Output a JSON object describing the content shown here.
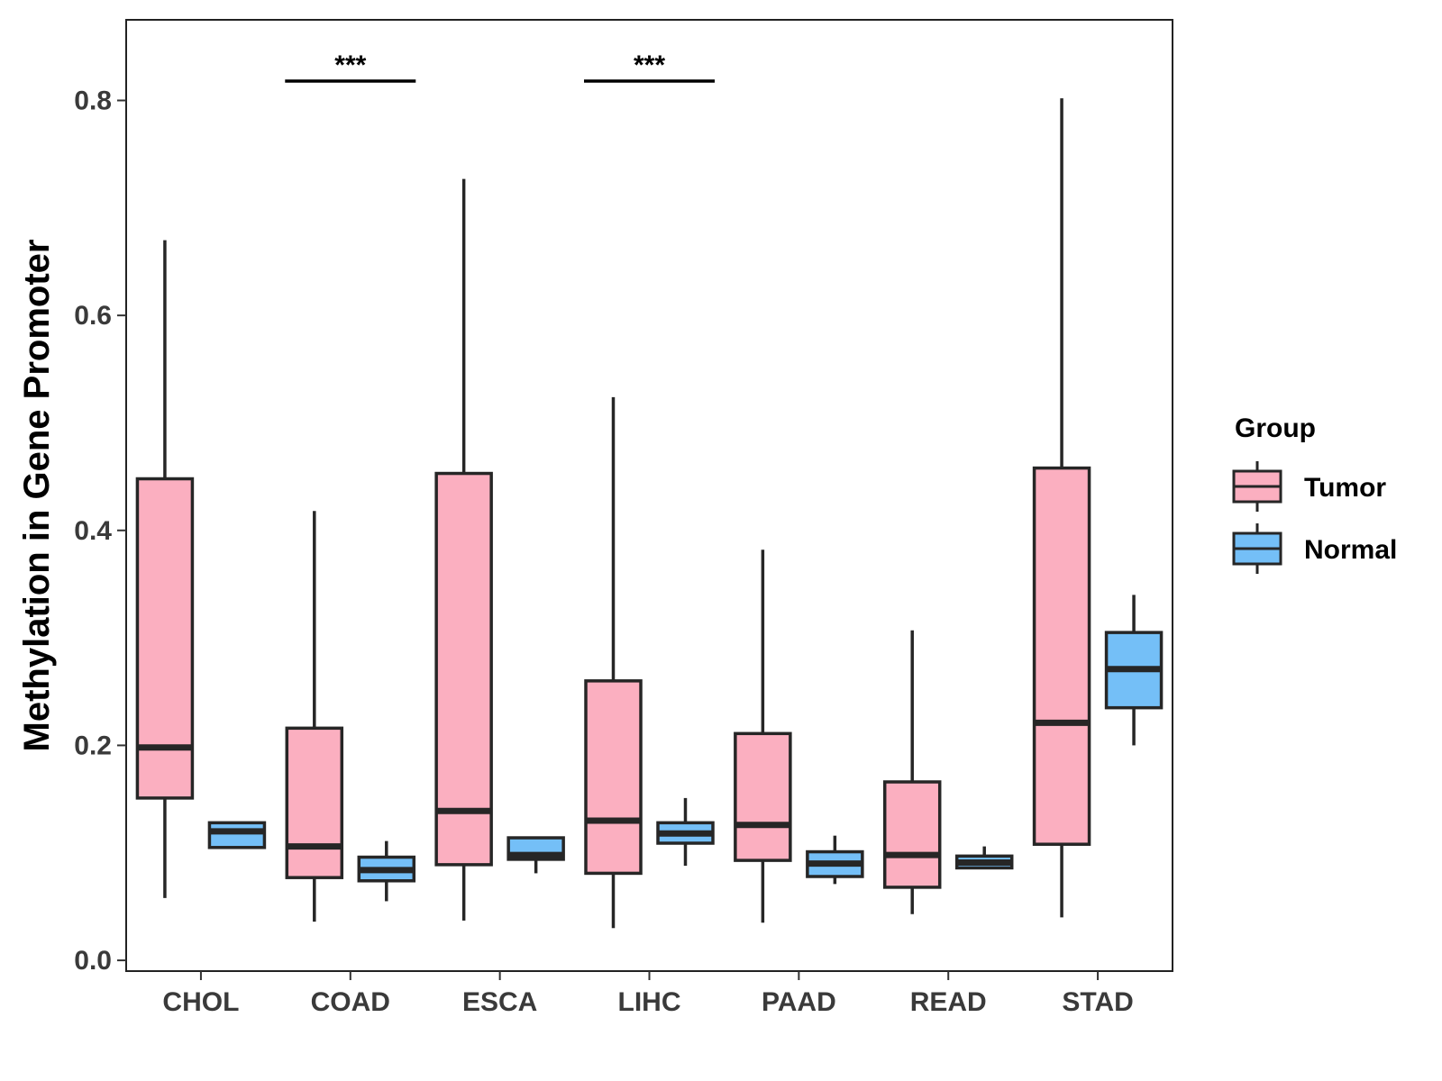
{
  "chart_data": {
    "type": "boxplot",
    "title": "",
    "xlabel": "",
    "ylabel": "Methylation in Gene Promoter",
    "ylim": [
      -0.01,
      0.875
    ],
    "yticks": [
      0.0,
      0.2,
      0.4,
      0.6,
      0.8
    ],
    "ytick_labels": [
      "0.0",
      "0.2",
      "0.4",
      "0.6",
      "0.8"
    ],
    "categories": [
      "CHOL",
      "COAD",
      "ESCA",
      "LIHC",
      "PAAD",
      "READ",
      "STAD"
    ],
    "legend": {
      "title": "Group",
      "position": "right",
      "entries": [
        {
          "name": "Tumor",
          "color": "#fbafc0"
        },
        {
          "name": "Normal",
          "color": "#74bff7"
        }
      ]
    },
    "series": [
      {
        "name": "Tumor",
        "color": "#fbafc0",
        "boxes": [
          {
            "category": "CHOL",
            "min": 0.058,
            "q1": 0.151,
            "median": 0.198,
            "q3": 0.448,
            "max": 0.67
          },
          {
            "category": "COAD",
            "min": 0.036,
            "q1": 0.077,
            "median": 0.106,
            "q3": 0.216,
            "max": 0.418
          },
          {
            "category": "ESCA",
            "min": 0.037,
            "q1": 0.089,
            "median": 0.139,
            "q3": 0.453,
            "max": 0.727
          },
          {
            "category": "LIHC",
            "min": 0.03,
            "q1": 0.081,
            "median": 0.13,
            "q3": 0.26,
            "max": 0.524
          },
          {
            "category": "PAAD",
            "min": 0.035,
            "q1": 0.093,
            "median": 0.126,
            "q3": 0.211,
            "max": 0.382
          },
          {
            "category": "READ",
            "min": 0.043,
            "q1": 0.068,
            "median": 0.098,
            "q3": 0.166,
            "max": 0.307
          },
          {
            "category": "STAD",
            "min": 0.04,
            "q1": 0.108,
            "median": 0.221,
            "q3": 0.458,
            "max": 0.802
          }
        ]
      },
      {
        "name": "Normal",
        "color": "#74bff7",
        "boxes": [
          {
            "category": "CHOL",
            "min": 0.104,
            "q1": 0.105,
            "median": 0.12,
            "q3": 0.128,
            "max": 0.129
          },
          {
            "category": "COAD",
            "min": 0.055,
            "q1": 0.074,
            "median": 0.084,
            "q3": 0.096,
            "max": 0.111
          },
          {
            "category": "ESCA",
            "min": 0.081,
            "q1": 0.094,
            "median": 0.098,
            "q3": 0.114,
            "max": 0.115
          },
          {
            "category": "LIHC",
            "min": 0.088,
            "q1": 0.109,
            "median": 0.118,
            "q3": 0.128,
            "max": 0.151
          },
          {
            "category": "PAAD",
            "min": 0.071,
            "q1": 0.078,
            "median": 0.09,
            "q3": 0.101,
            "max": 0.116
          },
          {
            "category": "READ",
            "min": 0.085,
            "q1": 0.086,
            "median": 0.091,
            "q3": 0.097,
            "max": 0.106
          },
          {
            "category": "STAD",
            "min": 0.2,
            "q1": 0.235,
            "median": 0.271,
            "q3": 0.305,
            "max": 0.34
          }
        ]
      }
    ],
    "annotations": [
      {
        "category": "COAD",
        "text": "***",
        "y": 0.818
      },
      {
        "category": "LIHC",
        "text": "***",
        "y": 0.818
      }
    ]
  }
}
